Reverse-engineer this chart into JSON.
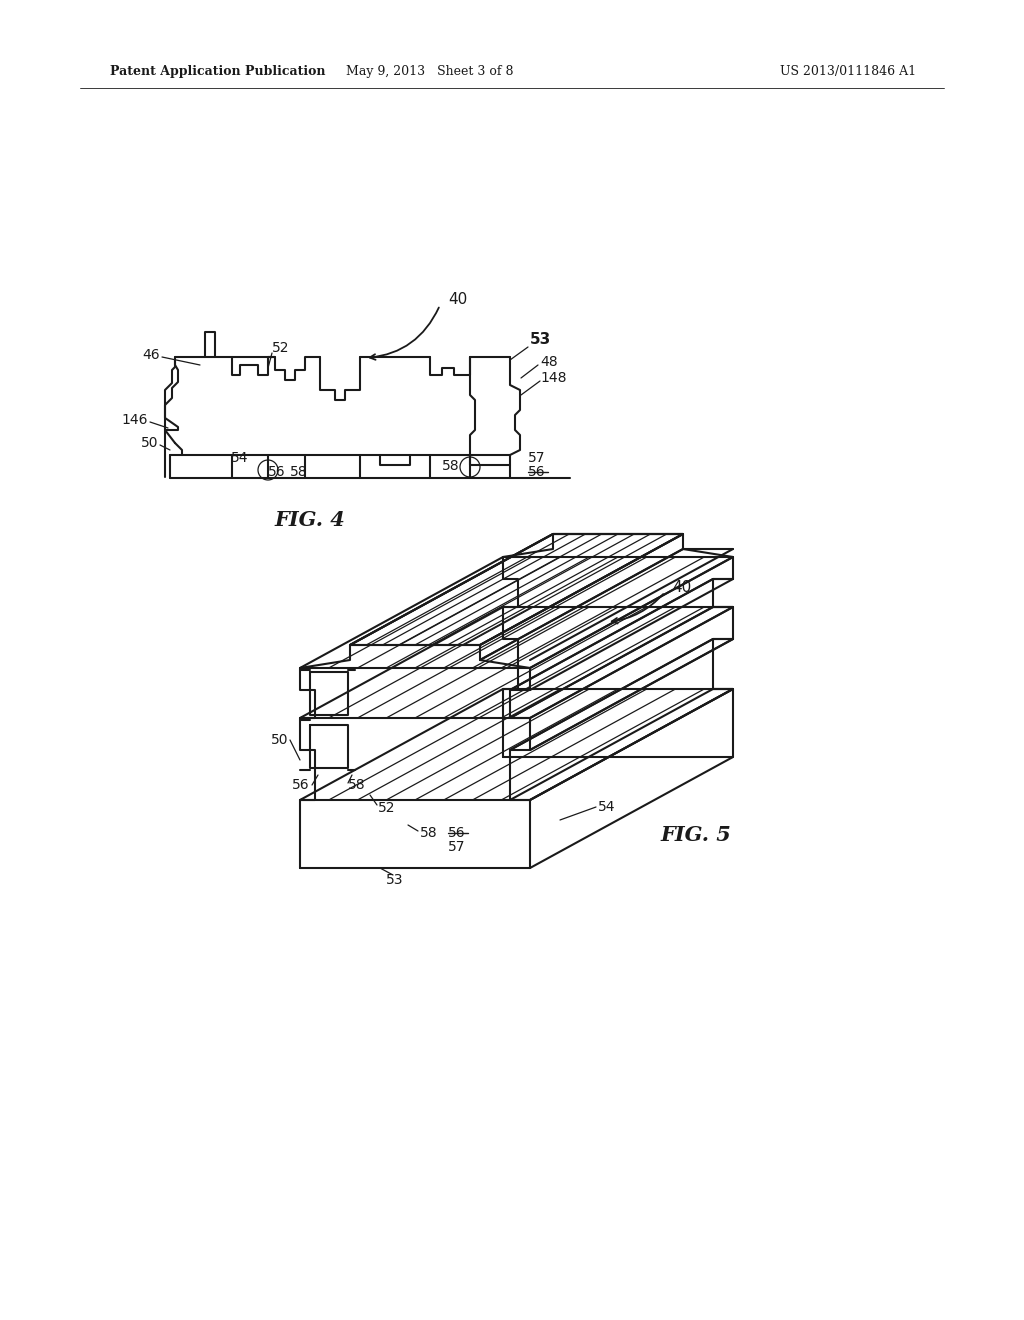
{
  "bg_color": "#ffffff",
  "line_color": "#1a1a1a",
  "header_left": "Patent Application Publication",
  "header_mid": "May 9, 2013   Sheet 3 of 8",
  "header_right": "US 2013/0111846 A1",
  "fig4_label": "FIG. 4",
  "fig5_label": "FIG. 5",
  "lw_main": 1.5,
  "lw_thin": 0.9
}
